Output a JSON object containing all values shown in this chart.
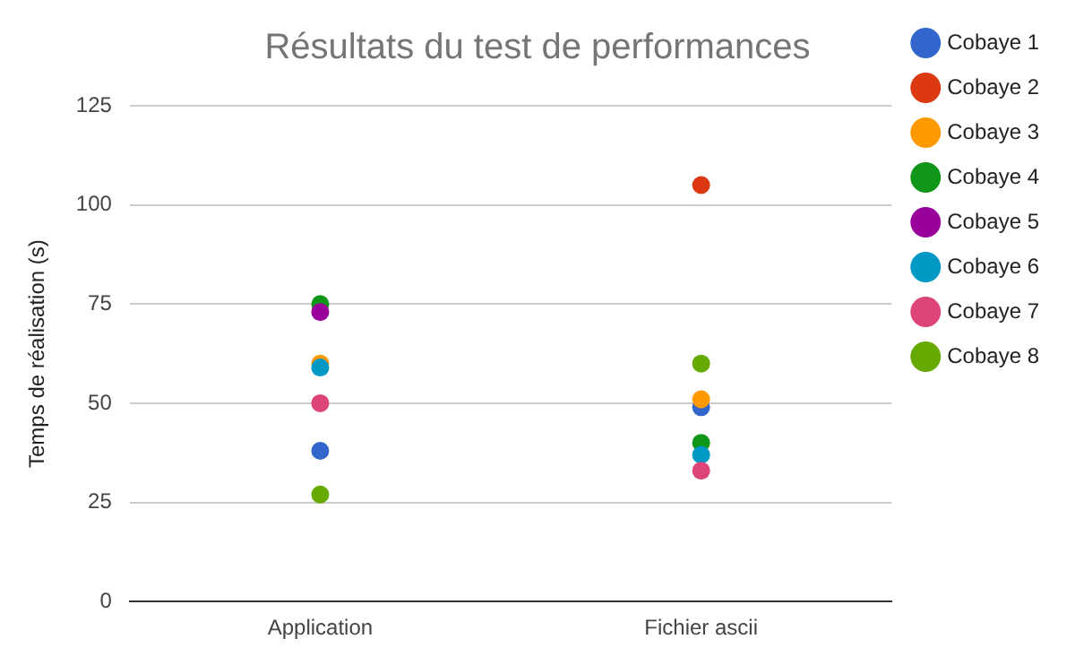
{
  "chart_data": {
    "type": "scatter",
    "title": "Résultats du test de performances",
    "ylabel": "Temps de réalisation (s)",
    "categories": [
      "Application",
      "Fichier ascii"
    ],
    "series": [
      {
        "name": "Cobaye 1",
        "color": "#3366cc",
        "values": [
          38,
          49
        ]
      },
      {
        "name": "Cobaye 2",
        "color": "#dc3912",
        "values": [
          null,
          105
        ]
      },
      {
        "name": "Cobaye 3",
        "color": "#ff9900",
        "values": [
          60,
          51
        ]
      },
      {
        "name": "Cobaye 4",
        "color": "#109618",
        "values": [
          75,
          40
        ]
      },
      {
        "name": "Cobaye 5",
        "color": "#990099",
        "values": [
          73,
          null
        ]
      },
      {
        "name": "Cobaye 6",
        "color": "#0099c6",
        "values": [
          59,
          37
        ]
      },
      {
        "name": "Cobaye 7",
        "color": "#dd4477",
        "values": [
          50,
          33
        ]
      },
      {
        "name": "Cobaye 8",
        "color": "#66aa00",
        "values": [
          27,
          60
        ]
      }
    ],
    "ylim": [
      0,
      125
    ],
    "yticks": [
      0,
      25,
      50,
      75,
      100,
      125
    ],
    "grid": "y",
    "legend": "right",
    "marker": "circle"
  }
}
